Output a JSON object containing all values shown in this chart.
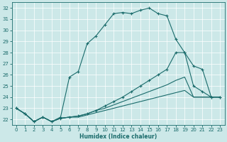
{
  "xlabel": "Humidex (Indice chaleur)",
  "bg_color": "#cce8e8",
  "line_color": "#1a6b6b",
  "grid_color": "#ffffff",
  "xlim": [
    -0.5,
    23.5
  ],
  "ylim": [
    21.5,
    32.5
  ],
  "yticks": [
    22,
    23,
    24,
    25,
    26,
    27,
    28,
    29,
    30,
    31,
    32
  ],
  "xticks": [
    0,
    1,
    2,
    3,
    4,
    5,
    6,
    7,
    8,
    9,
    10,
    11,
    12,
    13,
    14,
    15,
    16,
    17,
    18,
    19,
    20,
    21,
    22,
    23
  ],
  "curve1_x": [
    0,
    1,
    2,
    3,
    4,
    5,
    6,
    7,
    8,
    9,
    10,
    11,
    12,
    13,
    14,
    15,
    16,
    17,
    18,
    19,
    20,
    21,
    22,
    23
  ],
  "curve1_y": [
    23.0,
    22.5,
    21.8,
    22.2,
    21.8,
    22.2,
    25.8,
    26.3,
    28.8,
    29.5,
    30.5,
    31.5,
    31.6,
    31.5,
    31.8,
    32.0,
    31.5,
    31.3,
    29.2,
    28.0,
    26.8,
    26.5,
    24.0,
    24.0
  ],
  "curve2_x": [
    0,
    1,
    2,
    3,
    4,
    5,
    6,
    7,
    8,
    9,
    10,
    11,
    12,
    13,
    14,
    15,
    16,
    17,
    18,
    19,
    20,
    21,
    22,
    23
  ],
  "curve2_y": [
    23.0,
    22.5,
    21.8,
    22.2,
    21.8,
    22.1,
    22.2,
    22.3,
    22.5,
    22.8,
    23.2,
    23.6,
    24.0,
    24.5,
    25.0,
    25.5,
    26.0,
    26.5,
    28.0,
    28.0,
    25.0,
    24.5,
    24.0,
    24.0
  ],
  "curve3_x": [
    0,
    1,
    2,
    3,
    4,
    5,
    6,
    7,
    8,
    9,
    10,
    11,
    12,
    13,
    14,
    15,
    16,
    17,
    18,
    19,
    20,
    21,
    22,
    23
  ],
  "curve3_y": [
    23.0,
    22.5,
    21.8,
    22.2,
    21.8,
    22.1,
    22.2,
    22.3,
    22.5,
    22.8,
    23.0,
    23.3,
    23.6,
    23.9,
    24.2,
    24.5,
    24.8,
    25.1,
    25.5,
    25.8,
    24.0,
    24.0,
    24.0,
    24.0
  ],
  "curve4_x": [
    0,
    1,
    2,
    3,
    4,
    5,
    6,
    7,
    8,
    9,
    10,
    11,
    12,
    13,
    14,
    15,
    16,
    17,
    18,
    19,
    20,
    21,
    22,
    23
  ],
  "curve4_y": [
    23.0,
    22.5,
    21.8,
    22.2,
    21.8,
    22.1,
    22.2,
    22.2,
    22.4,
    22.6,
    22.8,
    23.0,
    23.2,
    23.4,
    23.6,
    23.8,
    24.0,
    24.2,
    24.4,
    24.6,
    24.0,
    24.0,
    24.0,
    24.0
  ]
}
